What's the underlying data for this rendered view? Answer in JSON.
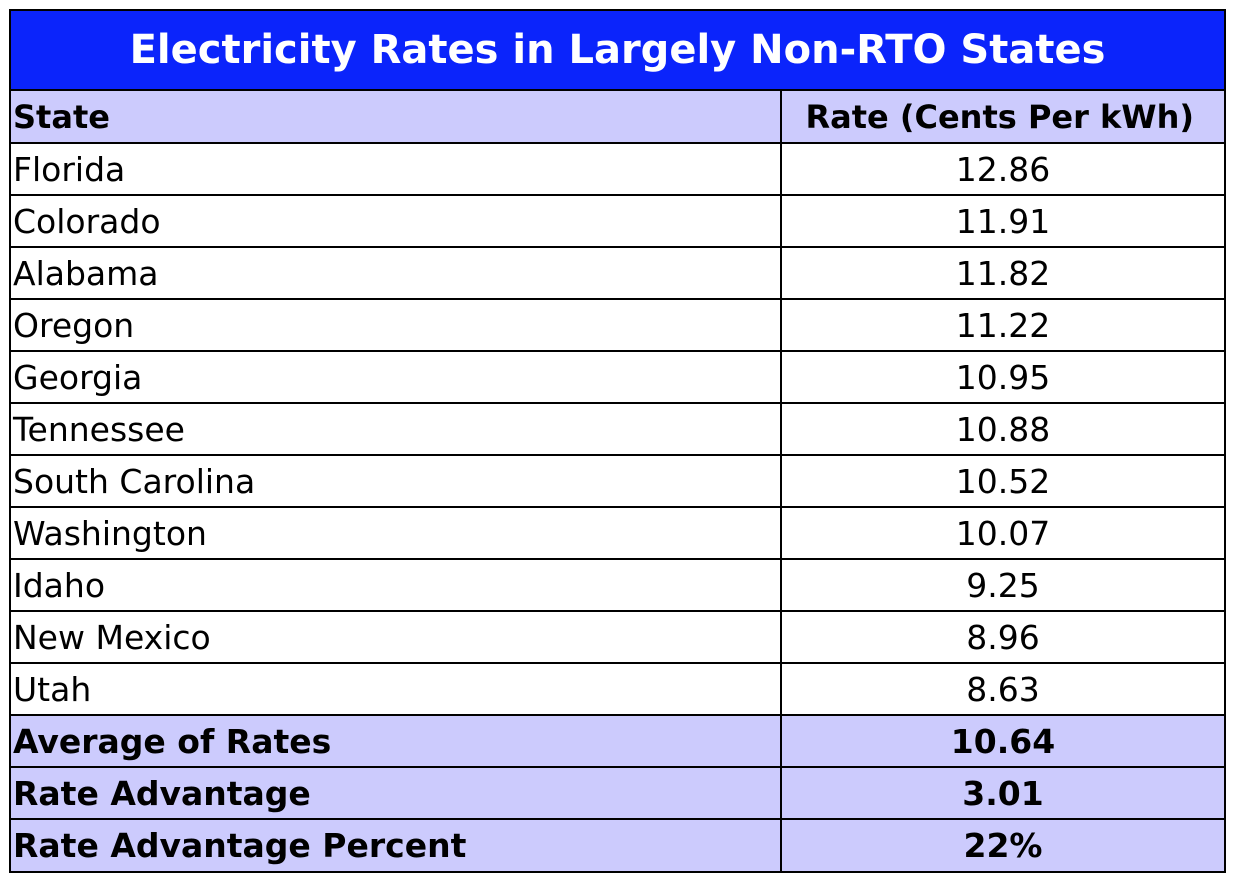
{
  "chart_data": {
    "type": "table",
    "title": "Electricity Rates in Largely Non-RTO States",
    "columns": [
      "State",
      "Rate (Cents Per  kWh)"
    ],
    "rows": [
      {
        "state": "Florida",
        "rate": "12.86"
      },
      {
        "state": "Colorado",
        "rate": "11.91"
      },
      {
        "state": "Alabama",
        "rate": "11.82"
      },
      {
        "state": "Oregon",
        "rate": "11.22"
      },
      {
        "state": "Georgia",
        "rate": "10.95"
      },
      {
        "state": "Tennessee",
        "rate": "10.88"
      },
      {
        "state": "South Carolina",
        "rate": "10.52"
      },
      {
        "state": "Washington",
        "rate": "10.07"
      },
      {
        "state": "Idaho",
        "rate": "9.25"
      },
      {
        "state": "New Mexico",
        "rate": "8.96"
      },
      {
        "state": "Utah",
        "rate": "8.63"
      }
    ],
    "summary": [
      {
        "label": "Average of Rates",
        "value": "10.64"
      },
      {
        "label": "Rate Advantage",
        "value": "3.01"
      },
      {
        "label": "Rate Advantage Percent",
        "value": "22%"
      }
    ]
  },
  "colors": {
    "title_background": "#0b24fb",
    "title_text": "#ffffff",
    "header_background": "#cccbfd",
    "summary_background": "#cccbfd",
    "grid_lines": "#000000"
  }
}
